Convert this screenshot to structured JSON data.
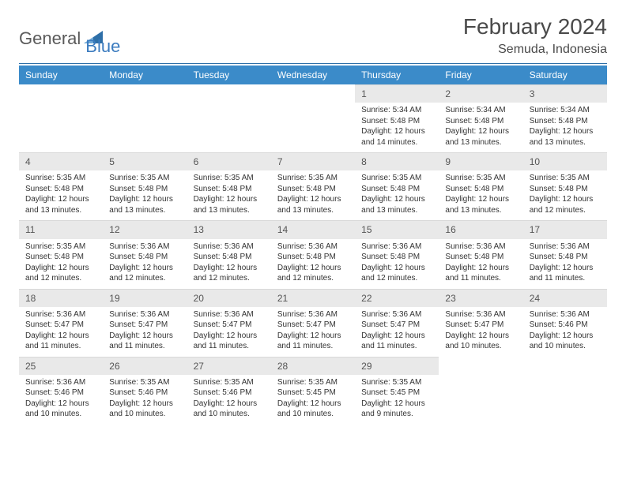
{
  "brand": {
    "word1": "General",
    "word2": "Blue",
    "logo_color": "#2e6fa8",
    "text1_color": "#5a5a5a",
    "text2_color": "#3b7bbf"
  },
  "header": {
    "month_title": "February 2024",
    "location": "Semuda, Indonesia",
    "title_color": "#4a4a4a",
    "title_fontsize": 28,
    "location_fontsize": 16
  },
  "calendar": {
    "header_bg": "#3b8bc9",
    "header_fg": "#ffffff",
    "daynum_bg": "#e9e9e9",
    "daynum_fg": "#555555",
    "body_fg": "#333333",
    "rule_color": "#2e6fa8",
    "day_names": [
      "Sunday",
      "Monday",
      "Tuesday",
      "Wednesday",
      "Thursday",
      "Friday",
      "Saturday"
    ],
    "weeks": [
      [
        null,
        null,
        null,
        null,
        {
          "n": "1",
          "sunrise": "5:34 AM",
          "sunset": "5:48 PM",
          "daylight": "12 hours",
          "daylight2": "and 14 minutes."
        },
        {
          "n": "2",
          "sunrise": "5:34 AM",
          "sunset": "5:48 PM",
          "daylight": "12 hours",
          "daylight2": "and 13 minutes."
        },
        {
          "n": "3",
          "sunrise": "5:34 AM",
          "sunset": "5:48 PM",
          "daylight": "12 hours",
          "daylight2": "and 13 minutes."
        }
      ],
      [
        {
          "n": "4",
          "sunrise": "5:35 AM",
          "sunset": "5:48 PM",
          "daylight": "12 hours",
          "daylight2": "and 13 minutes."
        },
        {
          "n": "5",
          "sunrise": "5:35 AM",
          "sunset": "5:48 PM",
          "daylight": "12 hours",
          "daylight2": "and 13 minutes."
        },
        {
          "n": "6",
          "sunrise": "5:35 AM",
          "sunset": "5:48 PM",
          "daylight": "12 hours",
          "daylight2": "and 13 minutes."
        },
        {
          "n": "7",
          "sunrise": "5:35 AM",
          "sunset": "5:48 PM",
          "daylight": "12 hours",
          "daylight2": "and 13 minutes."
        },
        {
          "n": "8",
          "sunrise": "5:35 AM",
          "sunset": "5:48 PM",
          "daylight": "12 hours",
          "daylight2": "and 13 minutes."
        },
        {
          "n": "9",
          "sunrise": "5:35 AM",
          "sunset": "5:48 PM",
          "daylight": "12 hours",
          "daylight2": "and 13 minutes."
        },
        {
          "n": "10",
          "sunrise": "5:35 AM",
          "sunset": "5:48 PM",
          "daylight": "12 hours",
          "daylight2": "and 12 minutes."
        }
      ],
      [
        {
          "n": "11",
          "sunrise": "5:35 AM",
          "sunset": "5:48 PM",
          "daylight": "12 hours",
          "daylight2": "and 12 minutes."
        },
        {
          "n": "12",
          "sunrise": "5:36 AM",
          "sunset": "5:48 PM",
          "daylight": "12 hours",
          "daylight2": "and 12 minutes."
        },
        {
          "n": "13",
          "sunrise": "5:36 AM",
          "sunset": "5:48 PM",
          "daylight": "12 hours",
          "daylight2": "and 12 minutes."
        },
        {
          "n": "14",
          "sunrise": "5:36 AM",
          "sunset": "5:48 PM",
          "daylight": "12 hours",
          "daylight2": "and 12 minutes."
        },
        {
          "n": "15",
          "sunrise": "5:36 AM",
          "sunset": "5:48 PM",
          "daylight": "12 hours",
          "daylight2": "and 12 minutes."
        },
        {
          "n": "16",
          "sunrise": "5:36 AM",
          "sunset": "5:48 PM",
          "daylight": "12 hours",
          "daylight2": "and 11 minutes."
        },
        {
          "n": "17",
          "sunrise": "5:36 AM",
          "sunset": "5:48 PM",
          "daylight": "12 hours",
          "daylight2": "and 11 minutes."
        }
      ],
      [
        {
          "n": "18",
          "sunrise": "5:36 AM",
          "sunset": "5:47 PM",
          "daylight": "12 hours",
          "daylight2": "and 11 minutes."
        },
        {
          "n": "19",
          "sunrise": "5:36 AM",
          "sunset": "5:47 PM",
          "daylight": "12 hours",
          "daylight2": "and 11 minutes."
        },
        {
          "n": "20",
          "sunrise": "5:36 AM",
          "sunset": "5:47 PM",
          "daylight": "12 hours",
          "daylight2": "and 11 minutes."
        },
        {
          "n": "21",
          "sunrise": "5:36 AM",
          "sunset": "5:47 PM",
          "daylight": "12 hours",
          "daylight2": "and 11 minutes."
        },
        {
          "n": "22",
          "sunrise": "5:36 AM",
          "sunset": "5:47 PM",
          "daylight": "12 hours",
          "daylight2": "and 11 minutes."
        },
        {
          "n": "23",
          "sunrise": "5:36 AM",
          "sunset": "5:47 PM",
          "daylight": "12 hours",
          "daylight2": "and 10 minutes."
        },
        {
          "n": "24",
          "sunrise": "5:36 AM",
          "sunset": "5:46 PM",
          "daylight": "12 hours",
          "daylight2": "and 10 minutes."
        }
      ],
      [
        {
          "n": "25",
          "sunrise": "5:36 AM",
          "sunset": "5:46 PM",
          "daylight": "12 hours",
          "daylight2": "and 10 minutes."
        },
        {
          "n": "26",
          "sunrise": "5:35 AM",
          "sunset": "5:46 PM",
          "daylight": "12 hours",
          "daylight2": "and 10 minutes."
        },
        {
          "n": "27",
          "sunrise": "5:35 AM",
          "sunset": "5:46 PM",
          "daylight": "12 hours",
          "daylight2": "and 10 minutes."
        },
        {
          "n": "28",
          "sunrise": "5:35 AM",
          "sunset": "5:45 PM",
          "daylight": "12 hours",
          "daylight2": "and 10 minutes."
        },
        {
          "n": "29",
          "sunrise": "5:35 AM",
          "sunset": "5:45 PM",
          "daylight": "12 hours",
          "daylight2": "and 9 minutes."
        },
        null,
        null
      ]
    ],
    "labels": {
      "sunrise_prefix": "Sunrise: ",
      "sunset_prefix": "Sunset: ",
      "daylight_prefix": "Daylight: "
    }
  }
}
